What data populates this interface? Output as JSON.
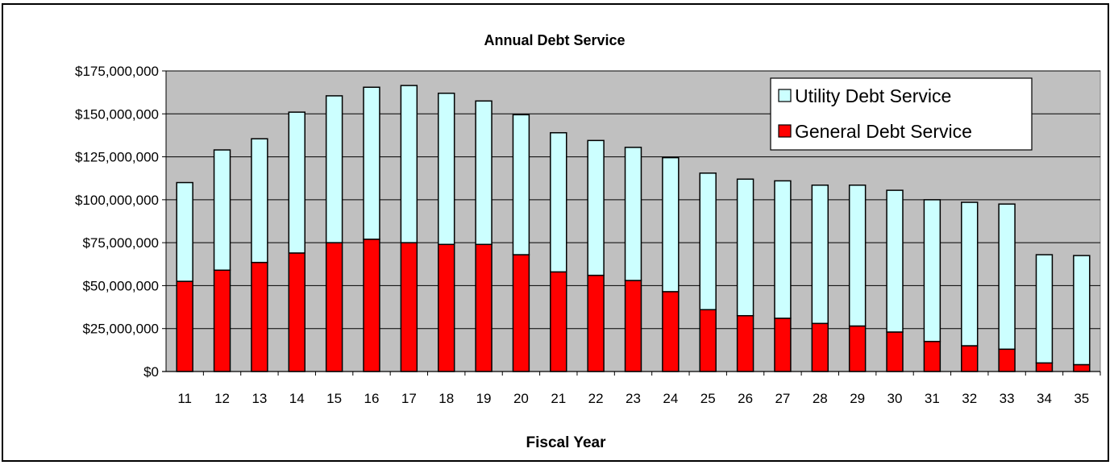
{
  "chart_data": {
    "type": "bar",
    "stacked": true,
    "title": "Annual Debt Service",
    "xlabel": "Fiscal Year",
    "ylabel": "",
    "ylim": [
      0,
      175000000
    ],
    "yticks": [
      "$0",
      "$25,000,000",
      "$50,000,000",
      "$75,000,000",
      "$100,000,000",
      "$125,000,000",
      "$150,000,000",
      "$175,000,000"
    ],
    "grid": true,
    "legend_position": "top-right",
    "categories": [
      "11",
      "12",
      "13",
      "14",
      "15",
      "16",
      "17",
      "18",
      "19",
      "20",
      "21",
      "22",
      "23",
      "24",
      "25",
      "26",
      "27",
      "28",
      "29",
      "30",
      "31",
      "32",
      "33",
      "34",
      "35"
    ],
    "series": [
      {
        "name": "General Debt Service",
        "color": "#ff0000",
        "values": [
          52500000,
          59000000,
          63500000,
          69000000,
          75000000,
          77000000,
          75000000,
          74000000,
          74000000,
          68000000,
          58000000,
          56000000,
          53000000,
          46500000,
          36000000,
          32500000,
          31000000,
          28000000,
          26500000,
          23000000,
          17500000,
          15000000,
          13000000,
          5000000,
          4000000
        ]
      },
      {
        "name": "Utility Debt Service",
        "color": "#ccffff",
        "values": [
          57500000,
          70000000,
          72000000,
          82000000,
          85500000,
          88500000,
          91500000,
          88000000,
          83500000,
          81500000,
          81000000,
          78500000,
          77500000,
          78000000,
          79500000,
          79500000,
          80000000,
          80500000,
          82000000,
          82500000,
          82500000,
          83500000,
          84500000,
          63000000,
          63500000
        ]
      }
    ]
  },
  "colors": {
    "plot_background": "#c0c0c0",
    "grid": "#000000"
  }
}
